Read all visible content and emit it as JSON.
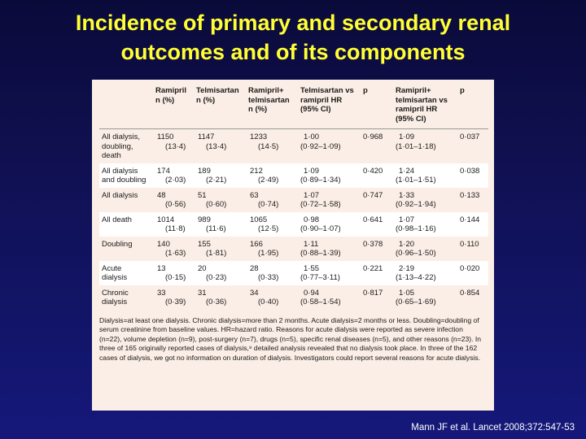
{
  "slide": {
    "title_line1": "Incidence of primary and secondary renal",
    "title_line2": "outcomes and of its components",
    "citation": "Mann JF et al. Lancet 2008;372:547-53"
  },
  "table": {
    "headers": [
      "",
      "Ramipril\nn (%)",
      "Telmisartan\nn (%)",
      "Ramipril+\ntelmisartan\nn (%)",
      "Telmisartan vs\nramipril HR\n(95% CI)",
      "p",
      "Ramipril+\ntelmisartan vs\nramipril HR\n(95% CI)",
      "p"
    ],
    "rows": [
      {
        "label": "All dialysis,\ndoubling,\ndeath",
        "ram": "1150",
        "ram_pct": "(13·4)",
        "tel": "1147",
        "tel_pct": "(13·4)",
        "comb": "1233",
        "comb_pct": "(14·5)",
        "hr1": "1·00",
        "ci1": "(0·92–1·09)",
        "p1": "0·968",
        "hr2": "1·09",
        "ci2": "(1·01–1·18)",
        "p2": "0·037",
        "shade": false
      },
      {
        "label": "All dialysis\nand doubling",
        "ram": "174",
        "ram_pct": "(2·03)",
        "tel": "189",
        "tel_pct": "(2·21)",
        "comb": "212",
        "comb_pct": "(2·49)",
        "hr1": "1·09",
        "ci1": "(0·89–1·34)",
        "p1": "0·420",
        "hr2": "1·24",
        "ci2": "(1·01–1·51)",
        "p2": "0·038",
        "shade": true
      },
      {
        "label": "All dialysis",
        "ram": "48",
        "ram_pct": "(0·56)",
        "tel": "51",
        "tel_pct": "(0·60)",
        "comb": "63",
        "comb_pct": "(0·74)",
        "hr1": "1·07",
        "ci1": "(0·72–1·58)",
        "p1": "0·747",
        "hr2": "1·33",
        "ci2": "(0·92–1·94)",
        "p2": "0·133",
        "shade": false
      },
      {
        "label": "All death",
        "ram": "1014",
        "ram_pct": "(11·8)",
        "tel": "989",
        "tel_pct": "(11·6)",
        "comb": "1065",
        "comb_pct": "(12·5)",
        "hr1": "0·98",
        "ci1": "(0·90–1·07)",
        "p1": "0·641",
        "hr2": "1·07",
        "ci2": "(0·98–1·16)",
        "p2": "0·144",
        "shade": true
      },
      {
        "label": "Doubling",
        "ram": "140",
        "ram_pct": "(1·63)",
        "tel": "155",
        "tel_pct": "(1·81)",
        "comb": "166",
        "comb_pct": "(1·95)",
        "hr1": "1·11",
        "ci1": "(0·88–1·39)",
        "p1": "0·378",
        "hr2": "1·20",
        "ci2": "(0·96–1·50)",
        "p2": "0·110",
        "shade": false
      },
      {
        "label": "Acute\ndialysis",
        "ram": "13",
        "ram_pct": "(0·15)",
        "tel": "20",
        "tel_pct": "(0·23)",
        "comb": "28",
        "comb_pct": "(0·33)",
        "hr1": "1·55",
        "ci1": "(0·77–3·11)",
        "p1": "0·221",
        "hr2": "2·19",
        "ci2": "(1·13–4·22)",
        "p2": "0·020",
        "shade": true
      },
      {
        "label": "Chronic\ndialysis",
        "ram": "33",
        "ram_pct": "(0·39)",
        "tel": "31",
        "tel_pct": "(0·36)",
        "comb": "34",
        "comb_pct": "(0·40)",
        "hr1": "0·94",
        "ci1": "(0·58–1·54)",
        "p1": "0·817",
        "hr2": "1·05",
        "ci2": "(0·65–1·69)",
        "p2": "0·854",
        "shade": false
      }
    ],
    "footnote": "Dialysis=at least one dialysis. Chronic dialysis=more than 2 months. Acute dialysis=2 months or less. Doubling=doubling of serum creatinine from baseline values. HR=hazard ratio. Reasons for acute dialysis were reported as severe infection (n=22), volume depletion (n=9), post-surgery (n=7), drugs (n=5), specific renal diseases (n=5), and other reasons (n=23). In three of 165 originally reported cases of dialysis,⁸ detailed analysis revealed that no dialysis took place. In three of the 162 cases of dialysis, we got no information on duration of dialysis. Investigators could report several reasons for acute dialysis."
  }
}
